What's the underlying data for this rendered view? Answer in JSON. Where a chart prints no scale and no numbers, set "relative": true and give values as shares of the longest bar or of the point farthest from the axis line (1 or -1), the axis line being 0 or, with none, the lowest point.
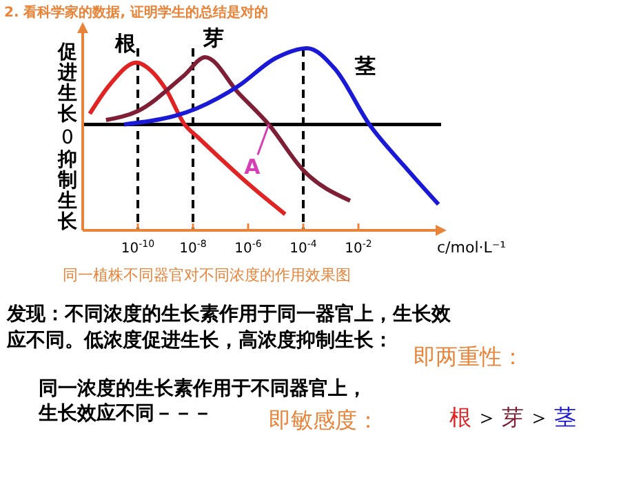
{
  "chart_data": {
    "type": "line",
    "relative": true,
    "title": "2. 看科学家的数据, 证明学生的总结是对的",
    "subtitle": "同一植株不同器官对不同浓度的作用效果图",
    "xlabel": "c/mol·L⁻¹",
    "log": "x",
    "xlim": [
      1e-12,
      10
    ],
    "xticks": [
      {
        "value": 1e-10,
        "label": "10$^{-10}$"
      },
      {
        "value": 1e-08,
        "label": "10$^{-8}$"
      },
      {
        "value": 1e-06,
        "label": "10$^{-6}$"
      },
      {
        "value": 0.0001,
        "label": "10$^{-4}$"
      },
      {
        "value": 0.01,
        "label": "10$^{-2}$"
      }
    ],
    "grid": false,
    "marker": "none",
    "line_style": "solid",
    "series": [
      {
        "name": "根",
        "color": "#e02424",
        "x": [
          1.8e-12,
          1e-11,
          9e-11,
          3e-10,
          1e-09,
          5e-09,
          1.6e-08,
          1e-07,
          1e-06,
          2.2e-05
        ],
        "values": [
          0.12,
          0.45,
          0.69,
          0.6,
          0.4,
          0,
          -0.15,
          -0.38,
          -0.66,
          -1
        ]
      },
      {
        "name": "芽",
        "color": "#7e1f35",
        "x": [
          7e-12,
          1e-10,
          4.5e-09,
          2.8e-08,
          4.5e-07,
          5.6e-06,
          0.0001,
          0.005
        ],
        "values": [
          0.05,
          0.15,
          0.54,
          0.75,
          0.35,
          0,
          -0.51,
          -0.85
        ]
      },
      {
        "name": "茎",
        "color": "#1a1ad6",
        "x": [
          3.2e-11,
          1.4e-08,
          4.5e-07,
          1e-05,
          0.00014,
          0.0014,
          0.025,
          0.45,
          8
        ],
        "values": [
          0,
          0.18,
          0.43,
          0.74,
          0.85,
          0.62,
          0,
          -0.46,
          -0.89
        ]
      }
    ],
    "ref_lines": [
      {
        "axis": "y",
        "value": 0,
        "color": "#000000",
        "line_style": "solid"
      },
      {
        "axis": "x",
        "value": 1e-10,
        "color": "#000000",
        "line_style": "dashed"
      },
      {
        "axis": "x",
        "value": 1e-08,
        "color": "#000000",
        "line_style": "dashed"
      },
      {
        "axis": "x",
        "value": 0.0001,
        "color": "#000000",
        "line_style": "dashed"
      }
    ],
    "annotations": [
      "促进生长",
      "0",
      "抑制生长",
      "发现：不同浓度的生长素作用于同一器官上，生长效应不同。低浓度促进生长，高浓度抑制生长：",
      "即两重性：",
      "同一浓度的生长素作用于不同器官上，生长效应不同－－－",
      "即敏感度：",
      "根 ＞ 芽 ＞ 茎",
      {
        "text": "A",
        "x": 5.6e-06,
        "y": 0
      }
    ]
  }
}
